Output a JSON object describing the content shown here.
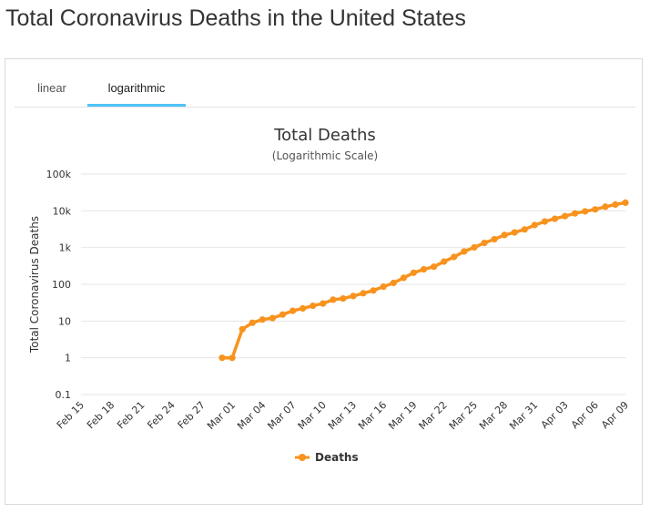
{
  "page": {
    "title": "Total Coronavirus Deaths in the United States"
  },
  "tabs": [
    {
      "label": "linear",
      "active": false
    },
    {
      "label": "logarithmic",
      "active": true
    }
  ],
  "colors": {
    "series": "#f7931e",
    "tab_active": "#4fc3f7",
    "grid": "#e6e6e6"
  },
  "chart_data": {
    "type": "line",
    "title": "Total Deaths",
    "subtitle": "(Logarithmic Scale)",
    "ylabel": "Total Coronavirus Deaths",
    "xlabel": "",
    "y_scale": "log",
    "ylim": [
      0.1,
      100000
    ],
    "y_ticks": [
      {
        "value": 0.1,
        "label": "0.1"
      },
      {
        "value": 1,
        "label": "1"
      },
      {
        "value": 10,
        "label": "10"
      },
      {
        "value": 100,
        "label": "100"
      },
      {
        "value": 1000,
        "label": "1k"
      },
      {
        "value": 10000,
        "label": "10k"
      },
      {
        "value": 100000,
        "label": "100k"
      }
    ],
    "x_tick_labels": [
      "Feb 15",
      "Feb 18",
      "Feb 21",
      "Feb 24",
      "Feb 27",
      "Mar 01",
      "Mar 04",
      "Mar 07",
      "Mar 10",
      "Mar 13",
      "Mar 16",
      "Mar 19",
      "Mar 22",
      "Mar 25",
      "Mar 28",
      "Mar 31",
      "Apr 03",
      "Apr 06",
      "Apr 09"
    ],
    "grid": true,
    "legend_position": "bottom-center",
    "categories": [
      "Feb 15",
      "Feb 16",
      "Feb 17",
      "Feb 18",
      "Feb 19",
      "Feb 20",
      "Feb 21",
      "Feb 22",
      "Feb 23",
      "Feb 24",
      "Feb 25",
      "Feb 26",
      "Feb 27",
      "Feb 28",
      "Feb 29",
      "Mar 01",
      "Mar 02",
      "Mar 03",
      "Mar 04",
      "Mar 05",
      "Mar 06",
      "Mar 07",
      "Mar 08",
      "Mar 09",
      "Mar 10",
      "Mar 11",
      "Mar 12",
      "Mar 13",
      "Mar 14",
      "Mar 15",
      "Mar 16",
      "Mar 17",
      "Mar 18",
      "Mar 19",
      "Mar 20",
      "Mar 21",
      "Mar 22",
      "Mar 23",
      "Mar 24",
      "Mar 25",
      "Mar 26",
      "Mar 27",
      "Mar 28",
      "Mar 29",
      "Mar 30",
      "Mar 31",
      "Apr 01",
      "Apr 02",
      "Apr 03",
      "Apr 04",
      "Apr 05",
      "Apr 06",
      "Apr 07",
      "Apr 08",
      "Apr 09"
    ],
    "series": [
      {
        "name": "Deaths",
        "values": [
          null,
          null,
          null,
          null,
          null,
          null,
          null,
          null,
          null,
          null,
          null,
          null,
          null,
          null,
          1,
          1,
          6,
          9,
          11,
          12,
          15,
          19,
          22,
          26,
          30,
          38,
          41,
          48,
          57,
          68,
          86,
          109,
          150,
          206,
          255,
          301,
          414,
          555,
          780,
          1010,
          1335,
          1680,
          2200,
          2580,
          3110,
          4080,
          5110,
          6060,
          7160,
          8500,
          9620,
          10900,
          12900,
          14800,
          16700
        ]
      }
    ]
  }
}
